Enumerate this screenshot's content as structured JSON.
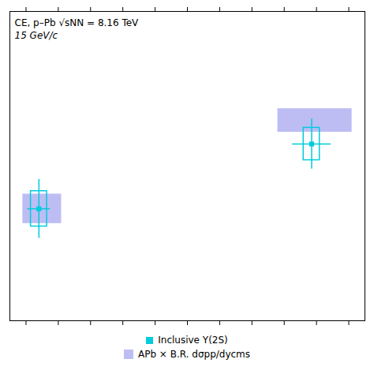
{
  "chart_data": {
    "type": "scatter",
    "annotations": [
      "CE, p–Pb √sNN = 8.16 TeV",
      "15 GeV/c"
    ],
    "xlim": [
      -5.5,
      5.5
    ],
    "xticks": [
      -5,
      -4,
      -3,
      -2,
      -1,
      0,
      1,
      2,
      3,
      4,
      5
    ],
    "ylim": [
      0.0,
      1.05
    ],
    "yticks": [],
    "tick_labels": false,
    "grid": false,
    "legend": "bottom",
    "series": [
      {
        "name": "Inclusive Υ(2S)",
        "type": "scatter",
        "marker": "square",
        "color": "#00CCDD",
        "x": [
          -4.6,
          3.85
        ],
        "values": [
          0.38,
          0.6
        ],
        "xerr": [
          0.35,
          0.6
        ],
        "yerr": [
          0.1,
          0.085
        ],
        "xerr_syst": [
          0.25,
          0.25
        ],
        "yerr_syst": [
          0.06,
          0.055
        ]
      },
      {
        "name": "APb × B.R. dσpp/dycms",
        "type": "box",
        "color": "#9999EE",
        "x_left": [
          -5.1,
          2.8
        ],
        "x_right": [
          -3.9,
          5.1
        ],
        "y_bottom": [
          0.33,
          0.64
        ],
        "y_top": [
          0.43,
          0.72
        ]
      }
    ]
  }
}
